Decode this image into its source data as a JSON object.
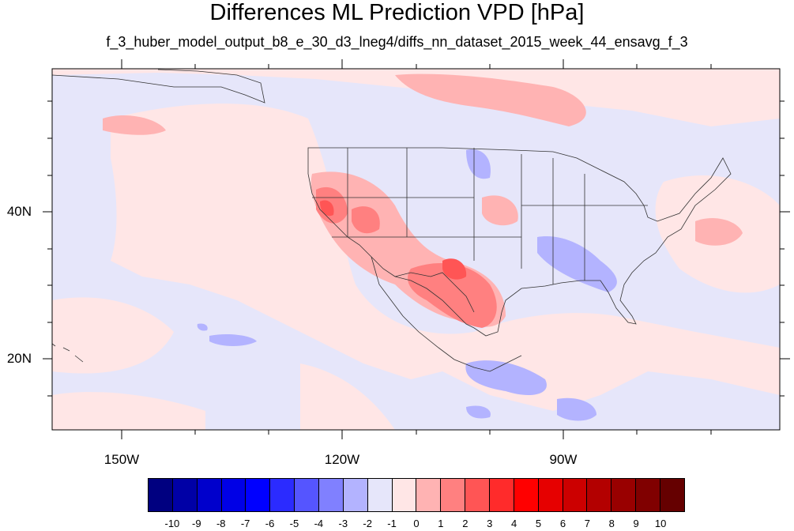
{
  "title": "Differences ML Prediction VPD [hPa]",
  "subtitle": "f_3_huber_model_output_b8_e_30_d3_lneg4/diffs_nn_dataset_2015_week_44_ensavg_f_3",
  "map": {
    "projection": "cylindrical-equidistant",
    "lon_range": [
      -160,
      -60
    ],
    "lat_range": [
      10,
      58
    ],
    "ocean_base_color": "#e6e6fa",
    "y_ticks": [
      {
        "lat": 40,
        "label": "40N"
      },
      {
        "lat": 20,
        "label": "20N"
      }
    ],
    "x_ticks": [
      {
        "lon": -150,
        "label": "150W"
      },
      {
        "lon": -120,
        "label": "120W"
      },
      {
        "lon": -90,
        "label": "90W"
      }
    ]
  },
  "colorbar": {
    "colors": [
      "#000080",
      "#0000a6",
      "#0000cc",
      "#0000e6",
      "#0000ff",
      "#2b2bff",
      "#5555ff",
      "#8080ff",
      "#b3b3ff",
      "#e6e6fa",
      "#ffe6e6",
      "#ffb3b3",
      "#ff8080",
      "#ff5555",
      "#ff2b2b",
      "#ff0000",
      "#e60000",
      "#cc0000",
      "#b30000",
      "#990000",
      "#800000",
      "#650000"
    ],
    "labels": [
      "-10",
      "-9",
      "-8",
      "-7",
      "-6",
      "-5",
      "-4",
      "-3",
      "-2",
      "-1",
      "0",
      "1",
      "2",
      "3",
      "4",
      "5",
      "6",
      "7",
      "8",
      "9",
      "10"
    ]
  }
}
